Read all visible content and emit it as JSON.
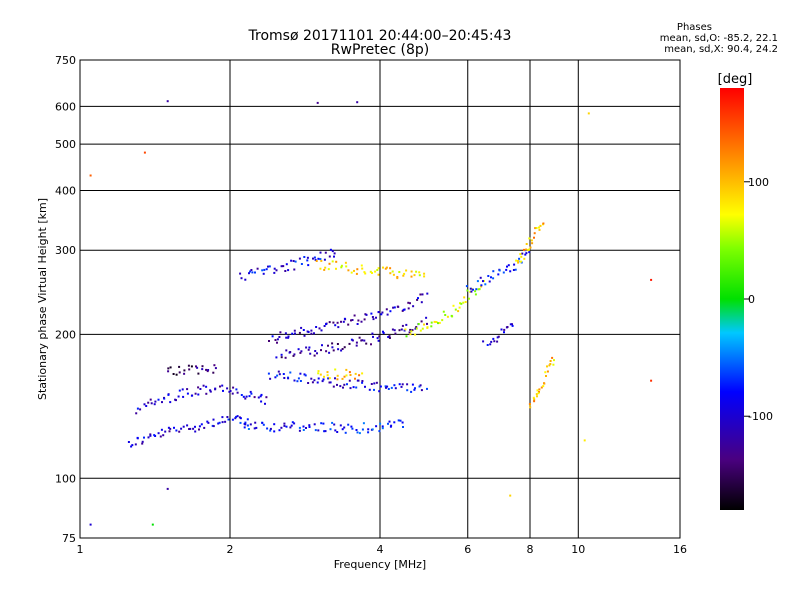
{
  "chart_data": {
    "type": "scatter",
    "title": "Tromsø 20171101 20:44:00–20:45:43",
    "subtitle": "RwPretec (8p)",
    "phases": {
      "heading": "Phases",
      "o_line": "mean, sd,O: -85.2, 22.1",
      "x_line": "mean, sd,X:  90.4, 24.2"
    },
    "xlabel": "Frequency [MHz]",
    "ylabel": "Stationary phase Virtual Height [km]",
    "x_scale": "log",
    "y_scale": "log",
    "xlim": [
      1,
      16
    ],
    "ylim": [
      75,
      750
    ],
    "x_ticks": [
      1,
      2,
      4,
      6,
      8,
      10,
      16
    ],
    "y_ticks": [
      75,
      100,
      200,
      300,
      400,
      500,
      600,
      750
    ],
    "grid": true,
    "colorbar": {
      "label": "[deg]",
      "min": -180,
      "max": 180,
      "ticks": [
        100,
        0,
        -100
      ]
    },
    "traces": [
      {
        "x": [
          1.25,
          1.5,
          1.8,
          2.0,
          2.2
        ],
        "y": [
          118,
          125,
          130,
          133,
          130
        ],
        "phase": -100
      },
      {
        "x": [
          1.3,
          1.6,
          1.9,
          2.1,
          2.4
        ],
        "y": [
          140,
          150,
          155,
          150,
          145
        ],
        "phase": -105
      },
      {
        "x": [
          1.5,
          1.75,
          1.9
        ],
        "y": [
          168,
          168,
          170
        ],
        "phase": -140
      },
      {
        "x": [
          2.1,
          2.5,
          3.0,
          3.5,
          4.0,
          4.5
        ],
        "y": [
          130,
          128,
          128,
          127,
          128,
          130
        ],
        "phase": -80
      },
      {
        "x": [
          2.4,
          3.0,
          3.5,
          4.0,
          4.5,
          5.0
        ],
        "y": [
          165,
          160,
          157,
          155,
          155,
          155
        ],
        "phase": -90
      },
      {
        "x": [
          3.0,
          3.3,
          3.7
        ],
        "y": [
          165,
          165,
          165
        ],
        "phase": 100
      },
      {
        "x": [
          2.4,
          2.8,
          3.2,
          3.6,
          4.0,
          4.5,
          5.0
        ],
        "y": [
          195,
          202,
          210,
          215,
          222,
          230,
          240
        ],
        "phase": -110
      },
      {
        "x": [
          2.5,
          3.0,
          3.5,
          4.0,
          4.5,
          5.0
        ],
        "y": [
          180,
          185,
          190,
          198,
          205,
          215
        ],
        "phase": -120
      },
      {
        "x": [
          4.5,
          5.0,
          5.5,
          6.0,
          6.5
        ],
        "y": [
          200,
          210,
          220,
          240,
          255
        ],
        "phase": 60
      },
      {
        "x": [
          2.1,
          2.4,
          2.7,
          3.0,
          3.3
        ],
        "y": [
          265,
          272,
          280,
          290,
          300
        ],
        "phase": -90
      },
      {
        "x": [
          3.0,
          3.5,
          4.0,
          4.5,
          5.0
        ],
        "y": [
          280,
          275,
          270,
          268,
          265
        ],
        "phase": 90
      },
      {
        "x": [
          6.0,
          6.5,
          7.0,
          7.5,
          8.0
        ],
        "y": [
          250,
          260,
          270,
          280,
          300
        ],
        "phase": -80
      },
      {
        "x": [
          7.5,
          8.0,
          8.3,
          8.5
        ],
        "y": [
          280,
          310,
          330,
          350
        ],
        "phase": 100
      },
      {
        "x": [
          6.5,
          7.0,
          7.5
        ],
        "y": [
          190,
          200,
          210
        ],
        "phase": -100
      },
      {
        "x": [
          8.0,
          8.5,
          9.0
        ],
        "y": [
          140,
          160,
          180
        ],
        "phase": 100
      }
    ],
    "scatter": [
      {
        "x": 1.5,
        "y": 615,
        "phase": -120
      },
      {
        "x": 1.35,
        "y": 480,
        "phase": 150
      },
      {
        "x": 1.05,
        "y": 430,
        "phase": 140
      },
      {
        "x": 3.0,
        "y": 610,
        "phase": -130
      },
      {
        "x": 3.6,
        "y": 612,
        "phase": -120
      },
      {
        "x": 10.5,
        "y": 580,
        "phase": 90
      },
      {
        "x": 14.0,
        "y": 260,
        "phase": 170
      },
      {
        "x": 14.0,
        "y": 160,
        "phase": 160
      },
      {
        "x": 1.5,
        "y": 95,
        "phase": -120
      },
      {
        "x": 1.05,
        "y": 80,
        "phase": -100
      },
      {
        "x": 1.4,
        "y": 80,
        "phase": 0
      },
      {
        "x": 7.3,
        "y": 92,
        "phase": 90
      },
      {
        "x": 10.3,
        "y": 120,
        "phase": 80
      }
    ]
  }
}
